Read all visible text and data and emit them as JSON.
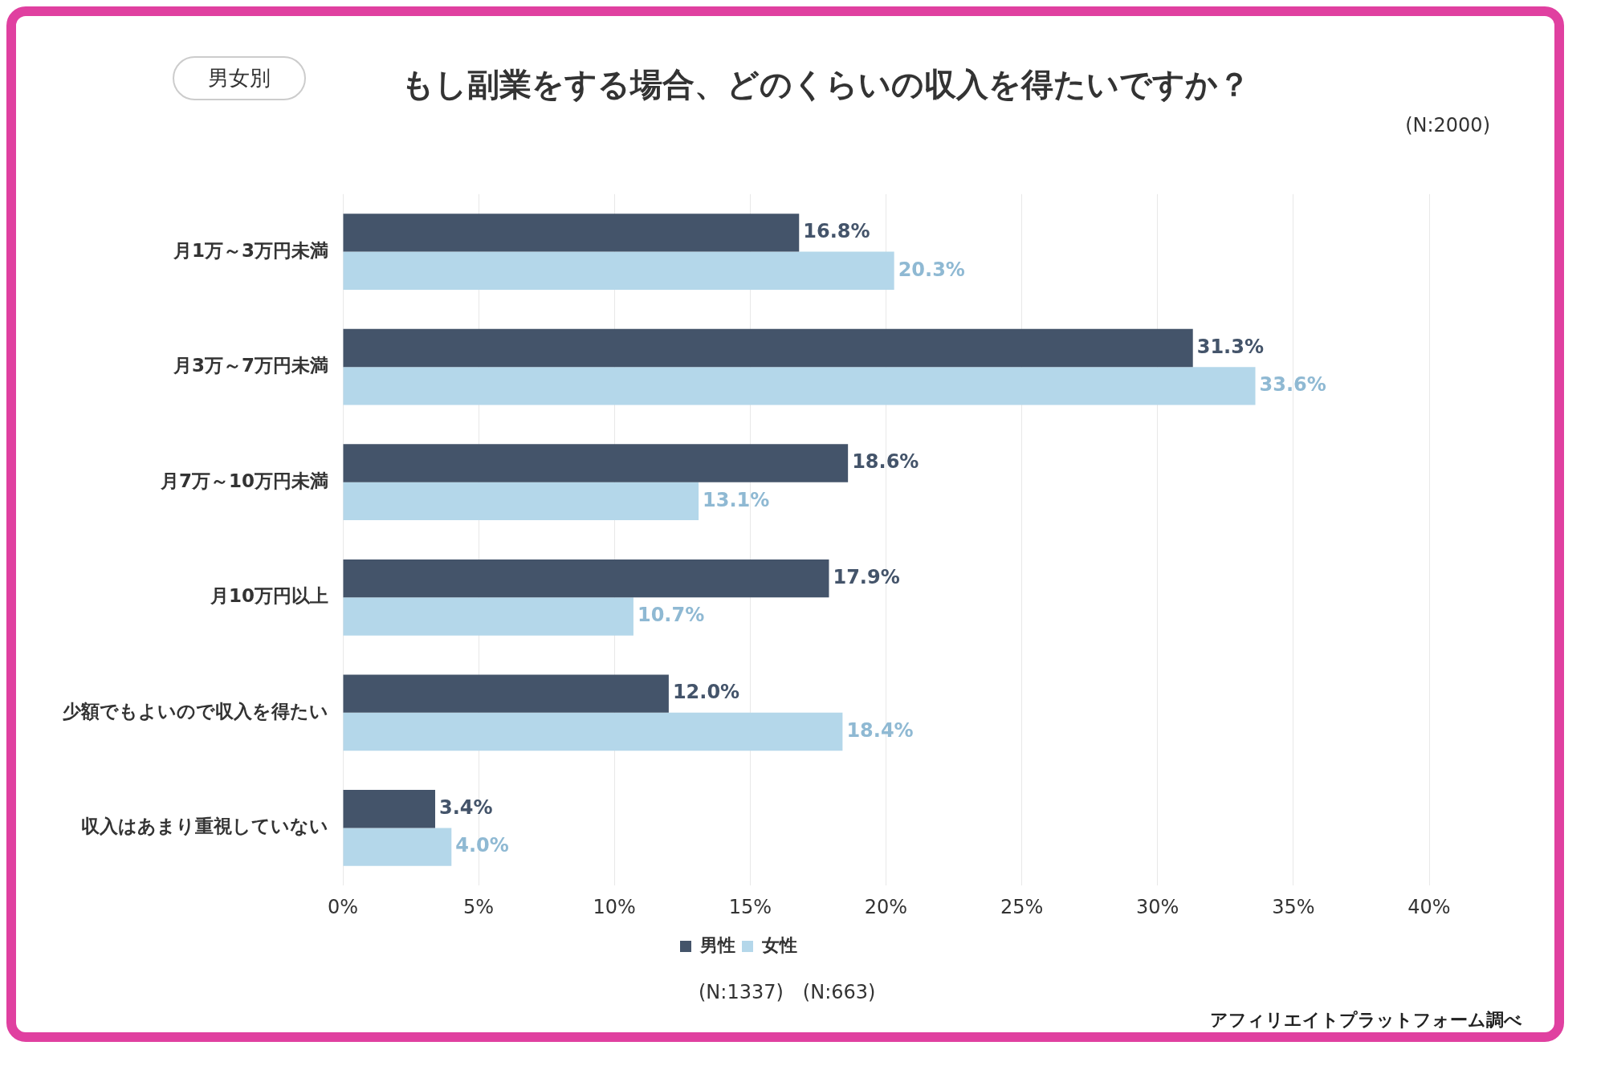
{
  "chart_data": {
    "type": "bar",
    "orientation": "horizontal",
    "title": "もし副業をする場合、どのくらいの収入を得たいですか？",
    "annotations": [
      "男女別",
      "(N:2000)",
      "(N:1337)　(N:663)",
      "アフィリエイトプラットフォーム調べ"
    ],
    "categories": [
      "月1万～3万円未満",
      "月3万～7万円未満",
      "月7万～10万円未満",
      "月10万円以上",
      "少額でもよいので収入を得たい",
      "収入はあまり重視していない"
    ],
    "series": [
      {
        "name": "男性",
        "color": "#44546a",
        "values": [
          16.8,
          31.3,
          18.6,
          17.9,
          12.0,
          3.4
        ],
        "value_labels": [
          "16.8%",
          "31.3%",
          "18.6%",
          "17.9%",
          "12.0%",
          "3.4%"
        ]
      },
      {
        "name": "女性",
        "color": "#b4d7ea",
        "values": [
          20.3,
          33.6,
          13.1,
          10.7,
          18.4,
          4.0
        ],
        "value_labels": [
          "20.3%",
          "33.6%",
          "13.1%",
          "10.7%",
          "18.4%",
          "4.0%"
        ]
      }
    ],
    "xlim": [
      0,
      40
    ],
    "xticks": [
      {
        "value": 0,
        "label": "0%"
      },
      {
        "value": 5,
        "label": "5%"
      },
      {
        "value": 10,
        "label": "10%"
      },
      {
        "value": 15,
        "label": "15%"
      },
      {
        "value": 20,
        "label": "20%"
      },
      {
        "value": 25,
        "label": "25%"
      },
      {
        "value": 30,
        "label": "30%"
      },
      {
        "value": 35,
        "label": "35%"
      },
      {
        "value": 40,
        "label": "40%"
      }
    ],
    "grid": "x",
    "legend": "bottom"
  }
}
